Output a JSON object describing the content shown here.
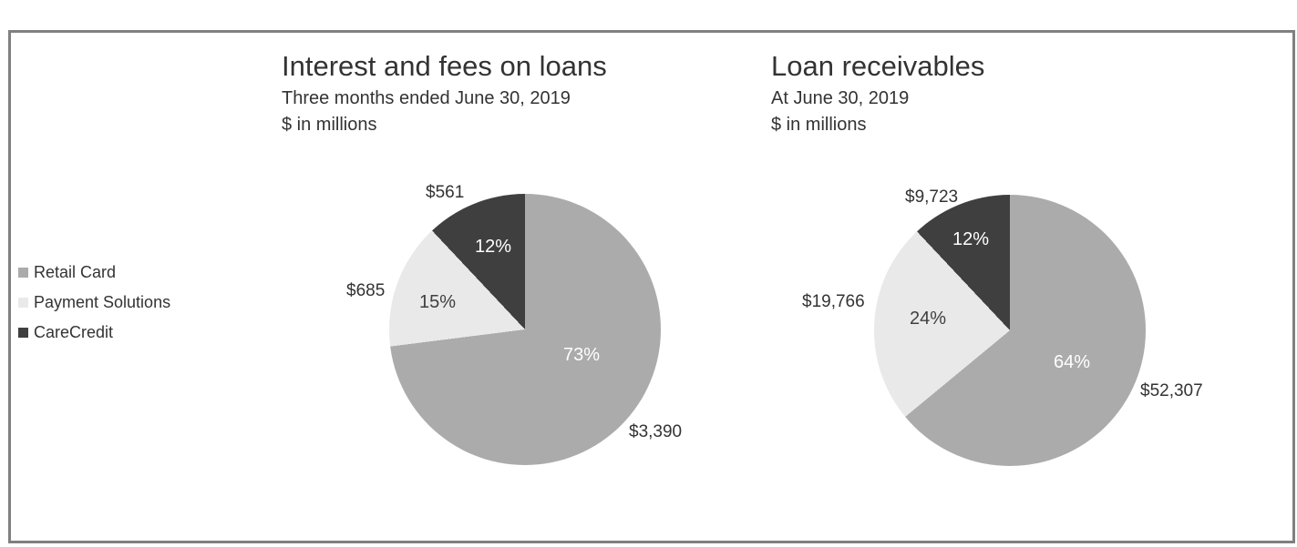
{
  "frame": {
    "border_color": "#808080",
    "background": "#ffffff"
  },
  "colors": {
    "retail_card": "#ABABAB",
    "payment_solutions": "#E9E9E9",
    "carecredit": "#3F3F3F",
    "text": "#333333",
    "pct_label_light": "#FFFFFF",
    "pct_label_dark": "#3F3F3F"
  },
  "legend": {
    "position": "left-outside",
    "items": [
      {
        "label": "Retail Card",
        "color": "#ABABAB"
      },
      {
        "label": "Payment Solutions",
        "color": "#E9E9E9"
      },
      {
        "label": "CareCredit",
        "color": "#3F3F3F"
      }
    ]
  },
  "chart_data": [
    {
      "type": "pie",
      "title": "Interest and fees on loans",
      "subtitle": "Three months ended June 30, 2019",
      "units": "$ in millions",
      "categories": [
        "Retail Card",
        "Payment Solutions",
        "CareCredit"
      ],
      "values": [
        3390,
        685,
        561
      ],
      "value_labels": [
        "$3,390",
        "$685",
        "$561"
      ],
      "percents": [
        73,
        15,
        12
      ],
      "percent_labels": [
        "73%",
        "15%",
        "12%"
      ],
      "slice_colors": [
        "#ABABAB",
        "#E9E9E9",
        "#3F3F3F"
      ],
      "start_angle_deg": 0,
      "direction": "clockwise",
      "grid": false
    },
    {
      "type": "pie",
      "title": "Loan receivables",
      "subtitle": "At June 30, 2019",
      "units": "$ in millions",
      "categories": [
        "Retail Card",
        "Payment Solutions",
        "CareCredit"
      ],
      "values": [
        52307,
        19766,
        9723
      ],
      "value_labels": [
        "$52,307",
        "$19,766",
        "$9,723"
      ],
      "percents": [
        64,
        24,
        12
      ],
      "percent_labels": [
        "64%",
        "24%",
        "12%"
      ],
      "slice_colors": [
        "#ABABAB",
        "#E9E9E9",
        "#3F3F3F"
      ],
      "start_angle_deg": 0,
      "direction": "clockwise",
      "grid": false
    }
  ]
}
